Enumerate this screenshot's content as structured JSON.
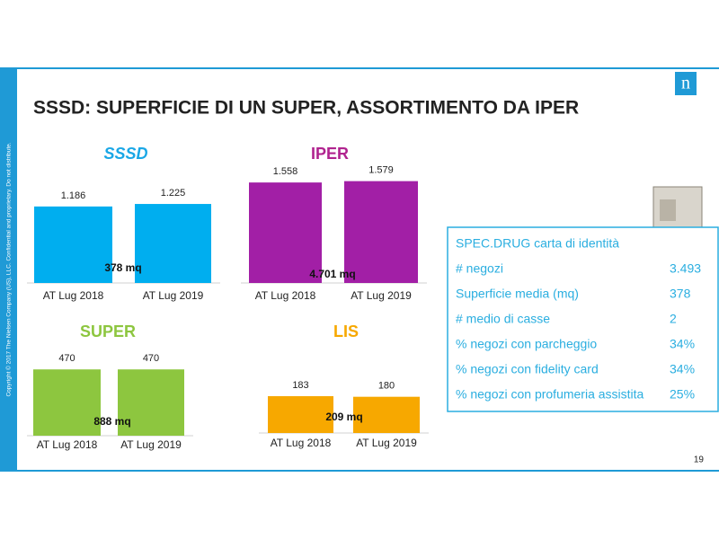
{
  "slide": {
    "title": "SSSD: SUPERFICIE DI UN SUPER, ASSORTIMENTO DA IPER",
    "page_number": "19",
    "logo": "n",
    "copyright": "Copyright © 2017 The Nielsen Company (US), LLC. Confidential and proprietary. Do not distribute.",
    "info_box": {
      "title": "SPEC.DRUG carta di identità",
      "rows": [
        [
          "# negozi",
          "3.493"
        ],
        [
          "Superficie media (mq)",
          "378"
        ],
        [
          "# medio di casse",
          "2"
        ],
        [
          "% negozi con parcheggio",
          "34%"
        ],
        [
          "% negozi con fidelity card",
          "34%"
        ],
        [
          "% negozi con profumeria assistita",
          "25%"
        ]
      ]
    }
  },
  "chart_data": [
    {
      "type": "bar",
      "title": "SSSD",
      "categories": [
        "AT Lug 2018",
        "AT Lug 2019"
      ],
      "values": [
        1186,
        1225
      ],
      "value_labels": [
        "1.186",
        "1.225"
      ],
      "color": "#00aeef",
      "title_color": "#1aa7e6",
      "annotation": "378 mq"
    },
    {
      "type": "bar",
      "title": "IPER",
      "categories": [
        "AT Lug 2018",
        "AT Lug 2019"
      ],
      "values": [
        1558,
        1579
      ],
      "value_labels": [
        "1.558",
        "1.579"
      ],
      "color": "#a21fa6",
      "title_color": "#b0238f",
      "annotation": "4.701 mq"
    },
    {
      "type": "bar",
      "title": "SUPER",
      "categories": [
        "AT Lug 2018",
        "AT Lug 2019"
      ],
      "values": [
        470,
        470
      ],
      "color": "#8dc63f",
      "title_color": "#8dc63f",
      "annotation": "888 mq"
    },
    {
      "type": "bar",
      "title": "LIS",
      "categories": [
        "AT Lug 2018",
        "AT Lug 2019"
      ],
      "values": [
        183,
        180
      ],
      "color": "#f7a800",
      "title_color": "#f7a800",
      "annotation": "209 mq"
    }
  ]
}
